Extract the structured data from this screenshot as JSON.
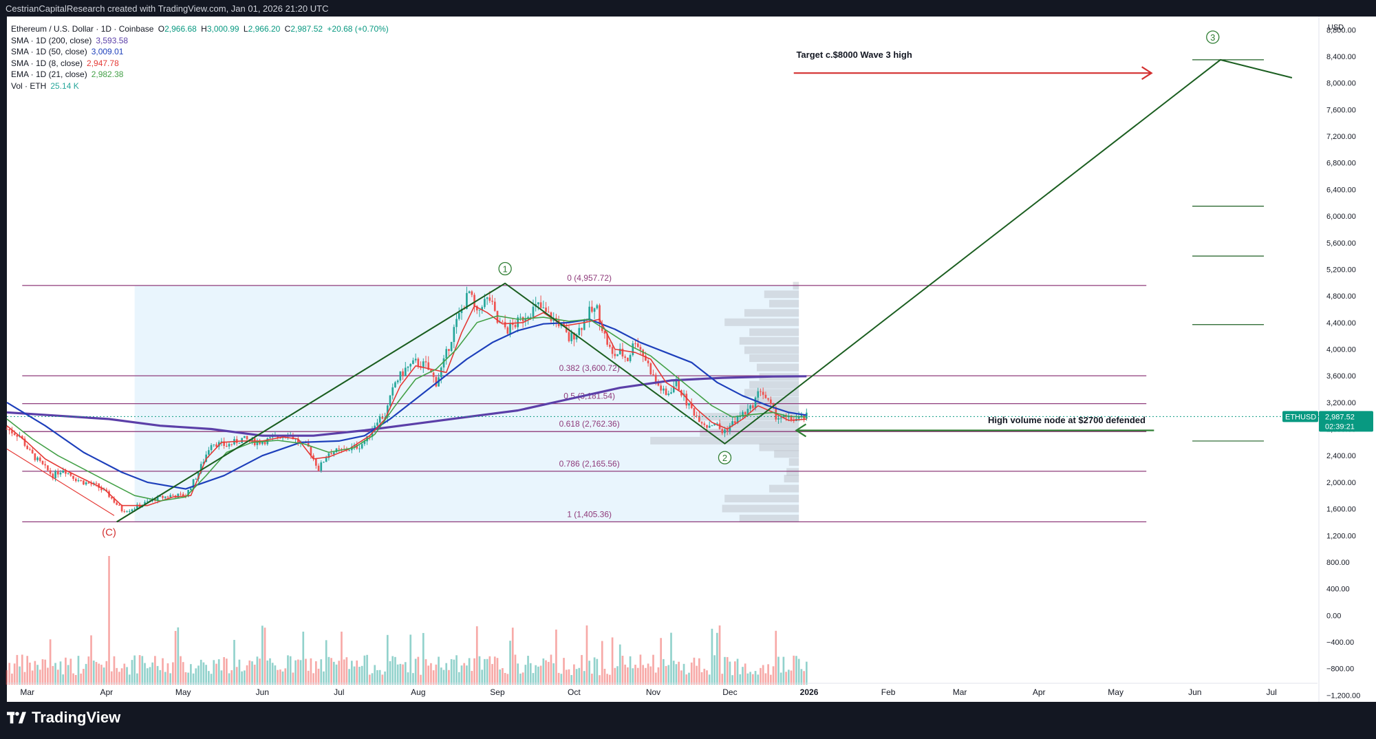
{
  "header": {
    "created_text": "CestrianCapitalResearch created with TradingView.com, Jan 01, 2026 21:20 UTC"
  },
  "legend": {
    "symbol": "Ethereum / U.S. Dollar · 1D · Coinbase",
    "ohlc": {
      "o_label": "O",
      "o": "2,966.68",
      "h_label": "H",
      "h": "3,000.99",
      "l_label": "L",
      "l": "2,966.20",
      "c_label": "C",
      "c": "2,987.52",
      "change": "+20.68 (+0.70%)"
    },
    "indicators": [
      {
        "label": "SMA · 1D (200, close)",
        "value": "3,593.58",
        "color": "#5b3fa8"
      },
      {
        "label": "SMA · 1D (50, close)",
        "value": "3,009.01",
        "color": "#1d3fbb"
      },
      {
        "label": "SMA · 1D (8, close)",
        "value": "2,947.78",
        "color": "#e53935"
      },
      {
        "label": "EMA · 1D (21, close)",
        "value": "2,982.38",
        "color": "#43a047"
      },
      {
        "label": "Vol · ETH",
        "value": "25.14 K",
        "color": "#26a69a"
      }
    ]
  },
  "chart_data": {
    "type": "candlestick",
    "symbol": "ETHUSD",
    "currency_label": "USD",
    "price_axis_ticks": [
      "8,800.00",
      "8,400.00",
      "8,000.00",
      "7,600.00",
      "7,200.00",
      "6,800.00",
      "6,400.00",
      "6,000.00",
      "5,600.00",
      "5,200.00",
      "4,800.00",
      "4,400.00",
      "4,000.00",
      "3,600.00",
      "3,200.00",
      "2,800.00",
      "2,400.00",
      "2,000.00",
      "1,600.00",
      "1,200.00",
      "800.00",
      "400.00",
      "0.00",
      "−400.00",
      "−800.00",
      "−1,200.00"
    ],
    "price_axis_values": [
      8800,
      8400,
      8000,
      7600,
      7200,
      6800,
      6400,
      6000,
      5600,
      5200,
      4800,
      4400,
      4000,
      3600,
      3200,
      2800,
      2400,
      2000,
      1600,
      1200,
      800,
      400,
      0,
      -400,
      -800,
      -1200
    ],
    "ylim": [
      -1300,
      9000
    ],
    "time_axis_labels": [
      "Mar",
      "Apr",
      "May",
      "Jun",
      "Jul",
      "Aug",
      "Sep",
      "Oct",
      "Nov",
      "Dec",
      "2026",
      "Feb",
      "Mar",
      "Apr",
      "May",
      "Jun",
      "Jul"
    ],
    "time_axis_bold": "2026",
    "xlim_days": [
      0,
      513
    ],
    "time_axis_days": [
      8,
      39,
      69,
      100,
      130,
      161,
      192,
      222,
      253,
      283,
      314,
      345,
      373,
      404,
      434,
      465,
      495
    ],
    "price_path": [
      [
        0,
        2800
      ],
      [
        5,
        2700
      ],
      [
        9,
        2450
      ],
      [
        14,
        2250
      ],
      [
        18,
        2100
      ],
      [
        22,
        2200
      ],
      [
        27,
        2050
      ],
      [
        30,
        2000
      ],
      [
        35,
        1950
      ],
      [
        40,
        1800
      ],
      [
        45,
        1580
      ],
      [
        48,
        1590
      ],
      [
        52,
        1650
      ],
      [
        58,
        1750
      ],
      [
        64,
        1800
      ],
      [
        70,
        1800
      ],
      [
        75,
        2150
      ],
      [
        80,
        2600
      ],
      [
        86,
        2550
      ],
      [
        92,
        2650
      ],
      [
        98,
        2600
      ],
      [
        104,
        2650
      ],
      [
        110,
        2750
      ],
      [
        114,
        2600
      ],
      [
        118,
        2520
      ],
      [
        122,
        2200
      ],
      [
        126,
        2450
      ],
      [
        132,
        2480
      ],
      [
        138,
        2550
      ],
      [
        141,
        2650
      ],
      [
        145,
        2950
      ],
      [
        148,
        3000
      ],
      [
        152,
        3500
      ],
      [
        156,
        3700
      ],
      [
        160,
        3800
      ],
      [
        164,
        3750
      ],
      [
        168,
        3500
      ],
      [
        171,
        3800
      ],
      [
        175,
        4300
      ],
      [
        178,
        4600
      ],
      [
        181,
        4850
      ],
      [
        184,
        4500
      ],
      [
        186,
        4700
      ],
      [
        189,
        4750
      ],
      [
        192,
        4400
      ],
      [
        196,
        4300
      ],
      [
        200,
        4400
      ],
      [
        204,
        4550
      ],
      [
        208,
        4650
      ],
      [
        212,
        4500
      ],
      [
        216,
        4400
      ],
      [
        220,
        4150
      ],
      [
        224,
        4300
      ],
      [
        228,
        4550
      ],
      [
        231,
        4600
      ],
      [
        234,
        4200
      ],
      [
        237,
        3900
      ],
      [
        240,
        3950
      ],
      [
        243,
        3850
      ],
      [
        246,
        4150
      ],
      [
        250,
        3850
      ],
      [
        254,
        3500
      ],
      [
        258,
        3300
      ],
      [
        262,
        3500
      ],
      [
        266,
        3200
      ],
      [
        270,
        3000
      ],
      [
        274,
        2850
      ],
      [
        277,
        2900
      ],
      [
        280,
        2750
      ],
      [
        283,
        2850
      ],
      [
        287,
        3000
      ],
      [
        291,
        3100
      ],
      [
        295,
        3400
      ],
      [
        298,
        3200
      ],
      [
        301,
        3000
      ],
      [
        305,
        2950
      ],
      [
        309,
        2950
      ],
      [
        313,
        2987
      ]
    ],
    "moving_averages": [
      {
        "name": "SMA 200",
        "color": "#5b3fa8",
        "width": 3.2,
        "points": [
          [
            0,
            3050
          ],
          [
            20,
            3000
          ],
          [
            40,
            2950
          ],
          [
            60,
            2850
          ],
          [
            80,
            2800
          ],
          [
            100,
            2700
          ],
          [
            120,
            2700
          ],
          [
            140,
            2780
          ],
          [
            160,
            2880
          ],
          [
            180,
            2980
          ],
          [
            200,
            3080
          ],
          [
            220,
            3250
          ],
          [
            240,
            3420
          ],
          [
            260,
            3530
          ],
          [
            280,
            3570
          ],
          [
            300,
            3590
          ],
          [
            313,
            3594
          ]
        ]
      },
      {
        "name": "SMA 50",
        "color": "#1d3fbb",
        "width": 2.2,
        "points": [
          [
            0,
            3200
          ],
          [
            15,
            2850
          ],
          [
            30,
            2450
          ],
          [
            45,
            2150
          ],
          [
            55,
            2000
          ],
          [
            70,
            1900
          ],
          [
            85,
            2100
          ],
          [
            100,
            2400
          ],
          [
            115,
            2600
          ],
          [
            130,
            2620
          ],
          [
            140,
            2700
          ],
          [
            150,
            2950
          ],
          [
            160,
            3250
          ],
          [
            170,
            3550
          ],
          [
            180,
            3850
          ],
          [
            190,
            4100
          ],
          [
            200,
            4280
          ],
          [
            210,
            4380
          ],
          [
            220,
            4400
          ],
          [
            228,
            4450
          ],
          [
            238,
            4300
          ],
          [
            248,
            4100
          ],
          [
            258,
            3950
          ],
          [
            268,
            3800
          ],
          [
            278,
            3500
          ],
          [
            288,
            3300
          ],
          [
            298,
            3150
          ],
          [
            306,
            3050
          ],
          [
            313,
            3009
          ]
        ]
      },
      {
        "name": "SMA 8",
        "color": "#e53935",
        "width": 1.6,
        "points": [
          [
            0,
            2850
          ],
          [
            8,
            2600
          ],
          [
            15,
            2350
          ],
          [
            22,
            2200
          ],
          [
            30,
            2050
          ],
          [
            38,
            1900
          ],
          [
            45,
            1650
          ],
          [
            55,
            1650
          ],
          [
            65,
            1780
          ],
          [
            72,
            1800
          ],
          [
            78,
            2350
          ],
          [
            84,
            2600
          ],
          [
            92,
            2620
          ],
          [
            100,
            2620
          ],
          [
            108,
            2680
          ],
          [
            114,
            2650
          ],
          [
            120,
            2350
          ],
          [
            126,
            2380
          ],
          [
            134,
            2500
          ],
          [
            142,
            2700
          ],
          [
            148,
            2950
          ],
          [
            154,
            3450
          ],
          [
            160,
            3750
          ],
          [
            166,
            3700
          ],
          [
            172,
            3650
          ],
          [
            178,
            4250
          ],
          [
            183,
            4650
          ],
          [
            188,
            4550
          ],
          [
            194,
            4380
          ],
          [
            202,
            4400
          ],
          [
            210,
            4550
          ],
          [
            218,
            4350
          ],
          [
            226,
            4400
          ],
          [
            232,
            4450
          ],
          [
            238,
            4000
          ],
          [
            246,
            3950
          ],
          [
            252,
            3850
          ],
          [
            258,
            3500
          ],
          [
            264,
            3350
          ],
          [
            270,
            3100
          ],
          [
            276,
            2900
          ],
          [
            282,
            2800
          ],
          [
            288,
            2950
          ],
          [
            294,
            3150
          ],
          [
            300,
            3050
          ],
          [
            306,
            2930
          ],
          [
            313,
            2948
          ]
        ]
      },
      {
        "name": "EMA 21",
        "color": "#43a047",
        "width": 1.6,
        "points": [
          [
            0,
            2950
          ],
          [
            10,
            2650
          ],
          [
            20,
            2400
          ],
          [
            30,
            2200
          ],
          [
            40,
            2000
          ],
          [
            50,
            1800
          ],
          [
            60,
            1720
          ],
          [
            70,
            1780
          ],
          [
            78,
            2100
          ],
          [
            86,
            2450
          ],
          [
            96,
            2600
          ],
          [
            106,
            2630
          ],
          [
            116,
            2580
          ],
          [
            126,
            2450
          ],
          [
            136,
            2520
          ],
          [
            144,
            2720
          ],
          [
            152,
            3150
          ],
          [
            160,
            3550
          ],
          [
            168,
            3700
          ],
          [
            176,
            4000
          ],
          [
            184,
            4400
          ],
          [
            192,
            4500
          ],
          [
            200,
            4450
          ],
          [
            210,
            4480
          ],
          [
            220,
            4420
          ],
          [
            228,
            4450
          ],
          [
            236,
            4250
          ],
          [
            244,
            4050
          ],
          [
            252,
            3900
          ],
          [
            260,
            3650
          ],
          [
            268,
            3400
          ],
          [
            276,
            3150
          ],
          [
            284,
            2980
          ],
          [
            292,
            3020
          ],
          [
            300,
            3050
          ],
          [
            306,
            2990
          ],
          [
            313,
            2982
          ]
        ]
      }
    ],
    "volume_profile": [
      [
        1450,
        120
      ],
      [
        1600,
        155
      ],
      [
        1750,
        150
      ],
      [
        1900,
        60
      ],
      [
        2050,
        30
      ],
      [
        2150,
        25
      ],
      [
        2300,
        20
      ],
      [
        2420,
        50
      ],
      [
        2520,
        80
      ],
      [
        2620,
        300
      ],
      [
        2740,
        200
      ],
      [
        2860,
        160
      ],
      [
        2980,
        200
      ],
      [
        3100,
        120
      ],
      [
        3220,
        90
      ],
      [
        3340,
        110
      ],
      [
        3460,
        100
      ],
      [
        3580,
        80
      ],
      [
        3720,
        85
      ],
      [
        3860,
        100
      ],
      [
        3980,
        110
      ],
      [
        4120,
        120
      ],
      [
        4250,
        100
      ],
      [
        4400,
        150
      ],
      [
        4540,
        110
      ],
      [
        4680,
        60
      ],
      [
        4820,
        70
      ],
      [
        4950,
        12
      ]
    ],
    "volume_bars_seed": 7,
    "fib_levels": [
      {
        "label": "0 (4,957.72)",
        "value": 4957.72
      },
      {
        "label": "0.382 (3,600.72)",
        "value": 3600.72
      },
      {
        "label": "0.5 (3,181.54)",
        "value": 3181.54
      },
      {
        "label": "0.618 (2,762.36)",
        "value": 2762.36
      },
      {
        "label": "0.786 (2,165.56)",
        "value": 2165.56
      },
      {
        "label": "1 (1,405.36)",
        "value": 1405.36
      }
    ],
    "fib_color": "#8e3a7a",
    "shaded_region": {
      "from_day": 50,
      "to_day": 310,
      "from_price": 1405.36,
      "to_price": 4957.72,
      "color": "#e3f2fd"
    },
    "wave_path": [
      [
        43,
        1405
      ],
      [
        195,
        4990
      ],
      [
        281,
        2580
      ],
      [
        475,
        8350
      ],
      [
        503,
        8080
      ]
    ],
    "wave_color": "#1b5e20",
    "wave_labels": [
      {
        "text": "1",
        "day": 195,
        "price": 5210,
        "color": "#2e7d32"
      },
      {
        "text": "2",
        "day": 281,
        "price": 2370,
        "color": "#2e7d32"
      },
      {
        "text": "3",
        "day": 472,
        "price": 8690,
        "color": "#2e7d32"
      },
      {
        "text": "(C)",
        "day": 40,
        "price": 1200,
        "color": "#d32f2f"
      }
    ],
    "target_lines": [
      8350,
      6150,
      5400,
      4370,
      2620
    ],
    "red_trend": [
      [
        0,
        2500
      ],
      [
        42,
        1500
      ]
    ],
    "annotations": [
      {
        "text": "Target c.$8000 Wave 3 high",
        "color": "#d32f2f",
        "arrow_from_day": 308,
        "arrow_to_day": 448,
        "price": 8150,
        "text_day": 309,
        "text_price": 8380
      },
      {
        "text": "High volume node at $2700 defended",
        "color": "#2e7d32",
        "arrow_from_day": 449,
        "arrow_to_day": 309,
        "price": 2780,
        "text_day": 384,
        "text_price": 2890
      }
    ],
    "last_price": {
      "symbol": "ETHUSD",
      "value": "2,987.52",
      "countdown": "02:39:21",
      "price": 2987.52,
      "color": "#089981"
    }
  },
  "footer": {
    "brand": "TradingView"
  }
}
